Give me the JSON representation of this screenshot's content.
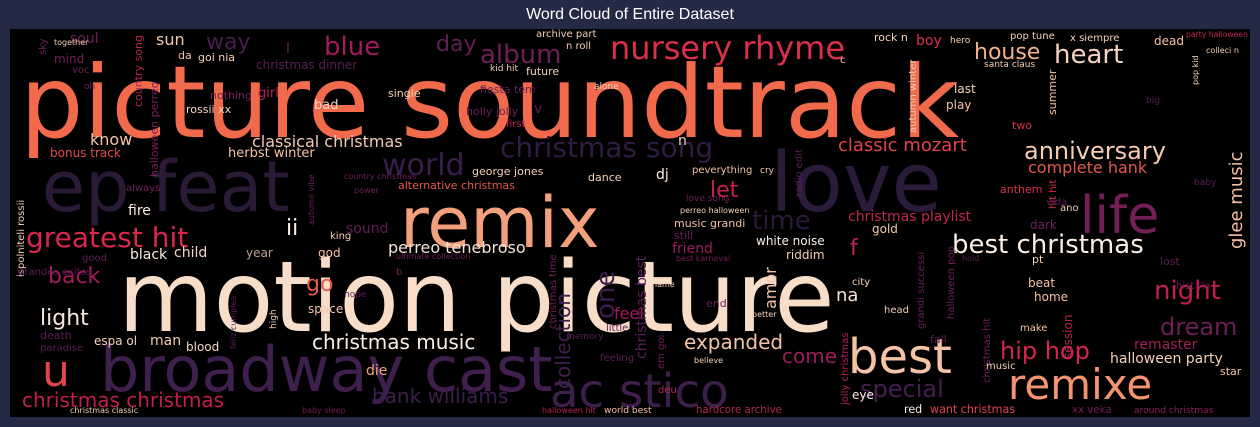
{
  "title": "Word Cloud of Entire Dataset",
  "chart_data": {
    "type": "wordcloud",
    "title": "Word Cloud of Entire Dataset",
    "colormap": "rocket",
    "background": "#000000",
    "words": [
      {
        "text": "picture soundtrack",
        "weight": 100,
        "color": "#f06a4b"
      },
      {
        "text": "motion picture",
        "weight": 95,
        "color": "#f8ddc8"
      },
      {
        "text": "love",
        "weight": 70,
        "color": "#2b1b3a"
      },
      {
        "text": "ep feat",
        "weight": 68,
        "color": "#2a1a36"
      },
      {
        "text": "remix",
        "weight": 62,
        "color": "#f3a07c"
      },
      {
        "text": "broadway cast",
        "weight": 58,
        "color": "#3f1f4d"
      },
      {
        "text": "ac stico",
        "weight": 50,
        "color": "#3c1f4a"
      },
      {
        "text": "best",
        "weight": 48,
        "color": "#f6c4a4"
      },
      {
        "text": "remixe",
        "weight": 42,
        "color": "#f39370"
      },
      {
        "text": "life",
        "weight": 40,
        "color": "#721f57"
      },
      {
        "text": "u",
        "weight": 38,
        "color": "#e0454a"
      },
      {
        "text": "nursery rhyme",
        "weight": 30,
        "color": "#d92f4b"
      },
      {
        "text": "christmas song",
        "weight": 28,
        "color": "#2f1c42"
      },
      {
        "text": "world",
        "weight": 28,
        "color": "#3a1f4c"
      },
      {
        "text": "greatest hit",
        "weight": 26,
        "color": "#d8274c"
      },
      {
        "text": "best christmas",
        "weight": 26,
        "color": "#fbeee4"
      },
      {
        "text": "blue",
        "weight": 26,
        "color": "#a11a5b"
      },
      {
        "text": "album",
        "weight": 26,
        "color": "#6e1f57"
      },
      {
        "text": "heart",
        "weight": 26,
        "color": "#f3d2c0"
      },
      {
        "text": "house",
        "weight": 22,
        "color": "#f4b08e"
      },
      {
        "text": "anniversary",
        "weight": 24,
        "color": "#f6cdb3"
      },
      {
        "text": "night",
        "weight": 26,
        "color": "#c22051"
      },
      {
        "text": "dream",
        "weight": 24,
        "color": "#6c1f56"
      },
      {
        "text": "hip hop",
        "weight": 24,
        "color": "#d5254c"
      },
      {
        "text": "special",
        "weight": 24,
        "color": "#4a1d52"
      },
      {
        "text": "day",
        "weight": 22,
        "color": "#621d55"
      },
      {
        "text": "time",
        "weight": 26,
        "color": "#2a1a3a"
      },
      {
        "text": "one",
        "weight": 26,
        "color": "#3a1f4c"
      },
      {
        "text": "way",
        "weight": 22,
        "color": "#4a1d52"
      },
      {
        "text": "back",
        "weight": 22,
        "color": "#a61a5a"
      },
      {
        "text": "light",
        "weight": 22,
        "color": "#f7e6dc"
      },
      {
        "text": "go",
        "weight": 22,
        "color": "#e4584b"
      },
      {
        "text": "christmas music",
        "weight": 20,
        "color": "#fbeee4"
      },
      {
        "text": "christmas christmas",
        "weight": 20,
        "color": "#c21d51"
      },
      {
        "text": "hank williams",
        "weight": 20,
        "color": "#3a1f4c"
      },
      {
        "text": "let",
        "weight": 22,
        "color": "#c82252"
      },
      {
        "text": "collection",
        "weight": 20,
        "color": "#3f1f4d"
      },
      {
        "text": "expanded",
        "weight": 20,
        "color": "#f3c4aa"
      },
      {
        "text": "come",
        "weight": 20,
        "color": "#9a1c5a"
      },
      {
        "text": "classic mozart",
        "weight": 18,
        "color": "#e0444c"
      },
      {
        "text": "glee music",
        "weight": 18,
        "color": "#f6bfa3"
      },
      {
        "text": "classical christmas",
        "weight": 16,
        "color": "#f3c9b5"
      },
      {
        "text": "complete hank",
        "weight": 16,
        "color": "#e25a4c"
      },
      {
        "text": "perreo tenebroso",
        "weight": 16,
        "color": "#f7e3d8"
      },
      {
        "text": "halloween party",
        "weight": 14,
        "color": "#f7d0bb"
      },
      {
        "text": "christmas playlist",
        "weight": 14,
        "color": "#c02452"
      },
      {
        "text": "amor",
        "weight": 16,
        "color": "#f3c3a8"
      },
      {
        "text": "na",
        "weight": 18,
        "color": "#f4e0d4"
      },
      {
        "text": "ii",
        "weight": 22,
        "color": "#fbeee4"
      },
      {
        "text": "f",
        "weight": 22,
        "color": "#c02452"
      },
      {
        "text": "feel",
        "weight": 16,
        "color": "#a61a5a"
      },
      {
        "text": "christmas best",
        "weight": 14,
        "color": "#5b1e55"
      },
      {
        "text": "remaster",
        "weight": 14,
        "color": "#a21f59"
      },
      {
        "text": "sun",
        "weight": 16,
        "color": "#f6c9ad"
      },
      {
        "text": "fire",
        "weight": 14,
        "color": "#fbeee4"
      },
      {
        "text": "dj",
        "weight": 14,
        "color": "#fbeee4"
      },
      {
        "text": "man",
        "weight": 14,
        "color": "#f6cdb3"
      },
      {
        "text": "eye",
        "weight": 12,
        "color": "#fbeee4"
      },
      {
        "text": "die",
        "weight": 14,
        "color": "#f2a784"
      },
      {
        "text": "friend",
        "weight": 14,
        "color": "#9a1c5a"
      },
      {
        "text": "hardcore archive",
        "weight": 11,
        "color": "#b4245c"
      },
      {
        "text": "xx veka",
        "weight": 11,
        "color": "#701f57"
      },
      {
        "text": "around christmas",
        "weight": 10,
        "color": "#8f1c5b"
      },
      {
        "text": "want christmas",
        "weight": 12,
        "color": "#e4454c"
      },
      {
        "text": "red",
        "weight": 12,
        "color": "#fbeee4"
      },
      {
        "text": "white noise",
        "weight": 12,
        "color": "#fbeee4"
      },
      {
        "text": "gold",
        "weight": 12,
        "color": "#f5c9ad"
      },
      {
        "text": "riddim",
        "weight": 12,
        "color": "#f6cdb3"
      },
      {
        "text": "sound",
        "weight": 14,
        "color": "#5b1e55"
      },
      {
        "text": "year",
        "weight": 12,
        "color": "#c0a090"
      },
      {
        "text": "child",
        "weight": 14,
        "color": "#f6d5c4"
      },
      {
        "text": "black",
        "weight": 14,
        "color": "#fbeee4"
      },
      {
        "text": "god",
        "weight": 12,
        "color": "#f6c2a6"
      },
      {
        "text": "space",
        "weight": 12,
        "color": "#f5c9ad"
      },
      {
        "text": "blood",
        "weight": 12,
        "color": "#f6d5c4"
      },
      {
        "text": "espa ol",
        "weight": 12,
        "color": "#f6d0b8"
      },
      {
        "text": "bonus track",
        "weight": 12,
        "color": "#e34c4c"
      },
      {
        "text": "herbst winter",
        "weight": 13,
        "color": "#f6c2a6"
      },
      {
        "text": "know",
        "weight": 16,
        "color": "#f3c4aa"
      },
      {
        "text": "halloween perreo",
        "weight": 11,
        "color": "#7a1f58"
      },
      {
        "text": "country song",
        "weight": 11,
        "color": "#b52158"
      },
      {
        "text": "rossii xx",
        "weight": 11,
        "color": "#f6d5c4"
      },
      {
        "text": "goi nia",
        "weight": 11,
        "color": "#f6d0b8"
      },
      {
        "text": "da",
        "weight": 11,
        "color": "#f6c2a6"
      },
      {
        "text": "nothing",
        "weight": 11,
        "color": "#7a1f58"
      },
      {
        "text": "girl",
        "weight": 13,
        "color": "#b52158"
      },
      {
        "text": "bad",
        "weight": 13,
        "color": "#f6d5c4"
      },
      {
        "text": "single",
        "weight": 11,
        "color": "#f6d0b8"
      },
      {
        "text": "christmas dinner",
        "weight": 12,
        "color": "#5b1e55"
      },
      {
        "text": "archive part",
        "weight": 10,
        "color": "#f6d0b8"
      },
      {
        "text": "n roll",
        "weight": 10,
        "color": "#f6d0b8"
      },
      {
        "text": "future",
        "weight": 11,
        "color": "#f6d0b8"
      },
      {
        "text": "kid hit",
        "weight": 9,
        "color": "#f6d0b8"
      },
      {
        "text": "fiesta tem",
        "weight": 11,
        "color": "#6c1f56"
      },
      {
        "text": "holly jolly",
        "weight": 11,
        "color": "#6c1f56"
      },
      {
        "text": "first",
        "weight": 10,
        "color": "#c02452"
      },
      {
        "text": "alone",
        "weight": 9,
        "color": "#f6d0b8"
      },
      {
        "text": "pop tune",
        "weight": 10,
        "color": "#f6d0b8"
      },
      {
        "text": "x siempre",
        "weight": 10,
        "color": "#f6d0b8"
      },
      {
        "text": "dead",
        "weight": 12,
        "color": "#f6c2a6"
      },
      {
        "text": "party halloween",
        "weight": 8,
        "color": "#c02452"
      },
      {
        "text": "rock n",
        "weight": 11,
        "color": "#f6d0b8"
      },
      {
        "text": "boy",
        "weight": 14,
        "color": "#d9304c"
      },
      {
        "text": "hero",
        "weight": 9,
        "color": "#f6d0b8"
      },
      {
        "text": "santa claus",
        "weight": 9,
        "color": "#f6d0b8"
      },
      {
        "text": "summer",
        "weight": 11,
        "color": "#f6c2a6"
      },
      {
        "text": "two",
        "weight": 11,
        "color": "#d9304c"
      },
      {
        "text": "last",
        "weight": 12,
        "color": "#f6d0b8"
      },
      {
        "text": "play",
        "weight": 12,
        "color": "#f6c2a6"
      },
      {
        "text": "autumn winter",
        "weight": 10,
        "color": "#f6d0b8"
      },
      {
        "text": "anthem",
        "weight": 11,
        "color": "#d9304c"
      },
      {
        "text": "hit hit",
        "weight": 10,
        "color": "#d9304c"
      },
      {
        "text": "vida",
        "weight": 10,
        "color": "#5b1e55"
      },
      {
        "text": "ano",
        "weight": 10,
        "color": "#f6d0b8"
      },
      {
        "text": "dark",
        "weight": 12,
        "color": "#701f57"
      },
      {
        "text": "pt",
        "weight": 11,
        "color": "#f6d0b8"
      },
      {
        "text": "beat",
        "weight": 12,
        "color": "#f6c2a6"
      },
      {
        "text": "home",
        "weight": 12,
        "color": "#f6c2a6"
      },
      {
        "text": "make",
        "weight": 10,
        "color": "#f6c2a6"
      },
      {
        "text": "session",
        "weight": 12,
        "color": "#b52158"
      },
      {
        "text": "christmas hit",
        "weight": 10,
        "color": "#701f57"
      },
      {
        "text": "music",
        "weight": 10,
        "color": "#f6d0b8"
      },
      {
        "text": "star",
        "weight": 11,
        "color": "#f6c2a6"
      },
      {
        "text": "lost",
        "weight": 11,
        "color": "#5b1e55"
      },
      {
        "text": "hist ria",
        "weight": 10,
        "color": "#6c1f56"
      },
      {
        "text": "city",
        "weight": 10,
        "color": "#f6d0b8"
      },
      {
        "text": "head",
        "weight": 10,
        "color": "#f6d0b8"
      },
      {
        "text": "halloween pop",
        "weight": 10,
        "color": "#6c1f56"
      },
      {
        "text": "grandi successi",
        "weight": 10,
        "color": "#6c1f56"
      },
      {
        "text": "fall",
        "weight": 11,
        "color": "#5b1e55"
      },
      {
        "text": "end",
        "weight": 11,
        "color": "#6c1f56"
      },
      {
        "text": "jolly christmas",
        "weight": 10,
        "color": "#b52158"
      },
      {
        "text": "christmas time",
        "weight": 10,
        "color": "#701f57"
      },
      {
        "text": "music grandi",
        "weight": 11,
        "color": "#f6c2a6"
      },
      {
        "text": "still",
        "weight": 11,
        "color": "#6c1f56"
      },
      {
        "text": "radio edit",
        "weight": 10,
        "color": "#5b1e55"
      },
      {
        "text": "peverything",
        "weight": 10,
        "color": "#f6c2a6"
      },
      {
        "text": "dance",
        "weight": 11,
        "color": "#f6d0b8"
      },
      {
        "text": "george jones",
        "weight": 11,
        "color": "#f6d0b8"
      },
      {
        "text": "alternative christmas",
        "weight": 11,
        "color": "#e5584b"
      },
      {
        "text": "cry",
        "weight": 9,
        "color": "#f6d0b8"
      },
      {
        "text": "world best",
        "weight": 10,
        "color": "#f6c2a6"
      },
      {
        "text": "deu",
        "weight": 10,
        "color": "#b52158"
      },
      {
        "text": "feeling",
        "weight": 10,
        "color": "#5b1e55"
      },
      {
        "text": "em goi",
        "weight": 10,
        "color": "#701f57"
      },
      {
        "text": "ultimate collection",
        "weight": 8,
        "color": "#701f57"
      },
      {
        "text": "king",
        "weight": 10,
        "color": "#f6d0b8"
      },
      {
        "text": "high",
        "weight": 9,
        "color": "#f6d0b8"
      },
      {
        "text": "soul",
        "weight": 14,
        "color": "#701f57"
      },
      {
        "text": "mind",
        "weight": 12,
        "color": "#701f57"
      },
      {
        "text": "sky",
        "weight": 10,
        "color": "#701f57"
      },
      {
        "text": "together",
        "weight": 8,
        "color": "#f6d0b8"
      },
      {
        "text": "voc",
        "weight": 10,
        "color": "#701f57"
      },
      {
        "text": "oh",
        "weight": 9,
        "color": "#701f57"
      },
      {
        "text": "ispolniteli rossii",
        "weight": 10,
        "color": "#f6d0b8"
      },
      {
        "text": "grandes exitos",
        "weight": 10,
        "color": "#5b1e55"
      },
      {
        "text": "death",
        "weight": 11,
        "color": "#5b1e55"
      },
      {
        "text": "paradise",
        "weight": 10,
        "color": "#5b1e55"
      },
      {
        "text": "good",
        "weight": 10,
        "color": "#5b1e55"
      },
      {
        "text": "christmas classic",
        "weight": 8,
        "color": "#f6d0b8"
      },
      {
        "text": "baby sleep",
        "weight": 8,
        "color": "#701f57"
      },
      {
        "text": "halloween hit",
        "weight": 8,
        "color": "#b52158"
      },
      {
        "text": "always",
        "weight": 10,
        "color": "#701f57"
      },
      {
        "text": "power",
        "weight": 8,
        "color": "#701f57"
      },
      {
        "text": "autumn vibe",
        "weight": 8,
        "color": "#701f57"
      },
      {
        "text": "hope",
        "weight": 9,
        "color": "#5b1e55"
      },
      {
        "text": "little",
        "weight": 10,
        "color": "#5b1e55"
      },
      {
        "text": "memory",
        "weight": 9,
        "color": "#5b1e55"
      },
      {
        "text": "love song",
        "weight": 9,
        "color": "#701f57"
      },
      {
        "text": "perreo halloween",
        "weight": 8,
        "color": "#f6d0b8"
      },
      {
        "text": "best karneval",
        "weight": 8,
        "color": "#701f57"
      },
      {
        "text": "name",
        "weight": 8,
        "color": "#f6d0b8"
      },
      {
        "text": "better",
        "weight": 8,
        "color": "#f6d0b8"
      },
      {
        "text": "believe",
        "weight": 8,
        "color": "#f6d0b8"
      },
      {
        "text": "country christmas",
        "weight": 8,
        "color": "#701f57"
      },
      {
        "text": "feliz cumplea",
        "weight": 8,
        "color": "#5b1e55"
      },
      {
        "text": "baby",
        "weight": 9,
        "color": "#5b1e55"
      },
      {
        "text": "pop kid",
        "weight": 8,
        "color": "#f6d0b8"
      },
      {
        "text": "colleci n",
        "weight": 8,
        "color": "#f6d0b8"
      },
      {
        "text": "hold",
        "weight": 8,
        "color": "#5b1e55"
      },
      {
        "text": "big",
        "weight": 9,
        "color": "#5b1e55"
      },
      {
        "text": "c",
        "weight": 10,
        "color": "#f6d0b8"
      },
      {
        "text": "b",
        "weight": 10,
        "color": "#701f57"
      },
      {
        "text": "n",
        "weight": 14,
        "color": "#f6d0b8"
      },
      {
        "text": "v",
        "weight": 14,
        "color": "#5b1e55"
      },
      {
        "text": "l",
        "weight": 14,
        "color": "#701f57"
      }
    ]
  }
}
